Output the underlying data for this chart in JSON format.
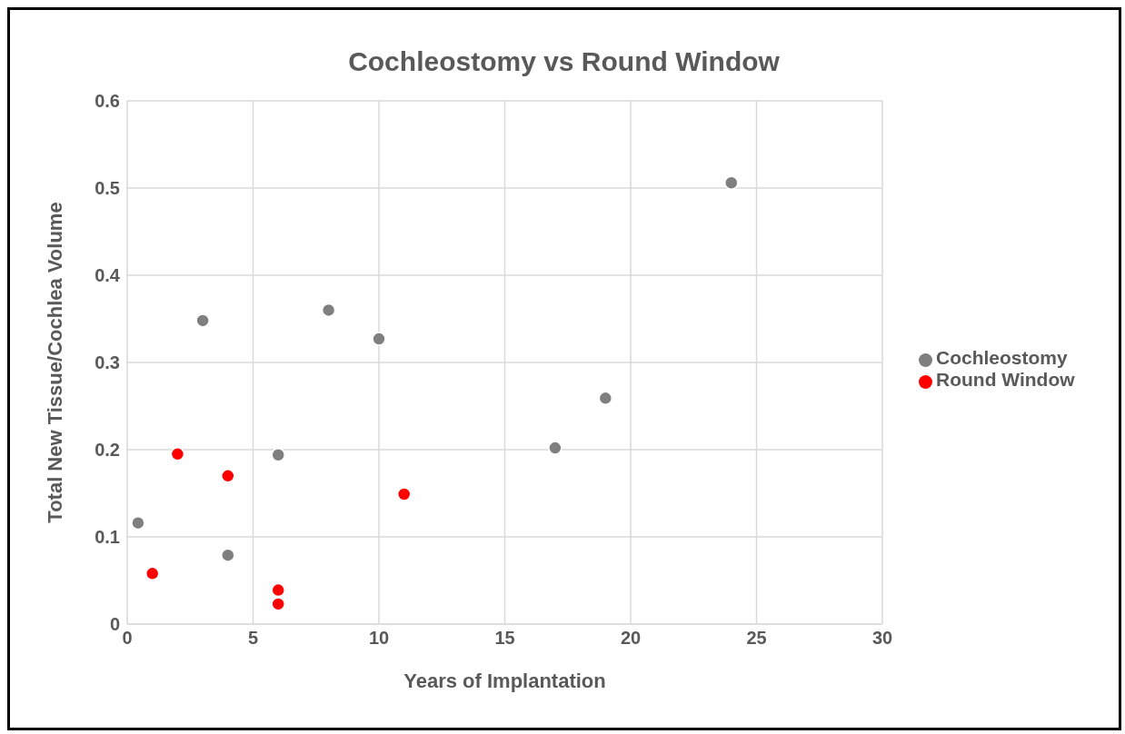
{
  "chart_data": {
    "type": "scatter",
    "title": "Cochleostomy vs Round Window",
    "xlabel": "Years of Implantation",
    "ylabel": "Total New Tissue/Cochlea Volume",
    "series": [
      {
        "name": "Cochleostomy",
        "color": "#7f7f7f",
        "x": [
          0.43,
          3,
          4,
          6,
          8,
          10,
          17,
          19,
          24
        ],
        "values": [
          0.116,
          0.348,
          0.079,
          0.194,
          0.36,
          0.327,
          0.202,
          0.259,
          0.506
        ]
      },
      {
        "name": "Round Window",
        "color": "#ff0000",
        "x": [
          1,
          2,
          4,
          6,
          6,
          11
        ],
        "values": [
          0.058,
          0.195,
          0.17,
          0.039,
          0.023,
          0.149
        ]
      }
    ],
    "xlim": [
      0,
      30
    ],
    "xticks": [
      0,
      5,
      10,
      15,
      20,
      25,
      30
    ],
    "ylim": [
      0,
      0.6
    ],
    "yticks": [
      0,
      0.1,
      0.2,
      0.3,
      0.4,
      0.5,
      0.6
    ],
    "grid": true,
    "legend": "right",
    "marker": "circle"
  }
}
